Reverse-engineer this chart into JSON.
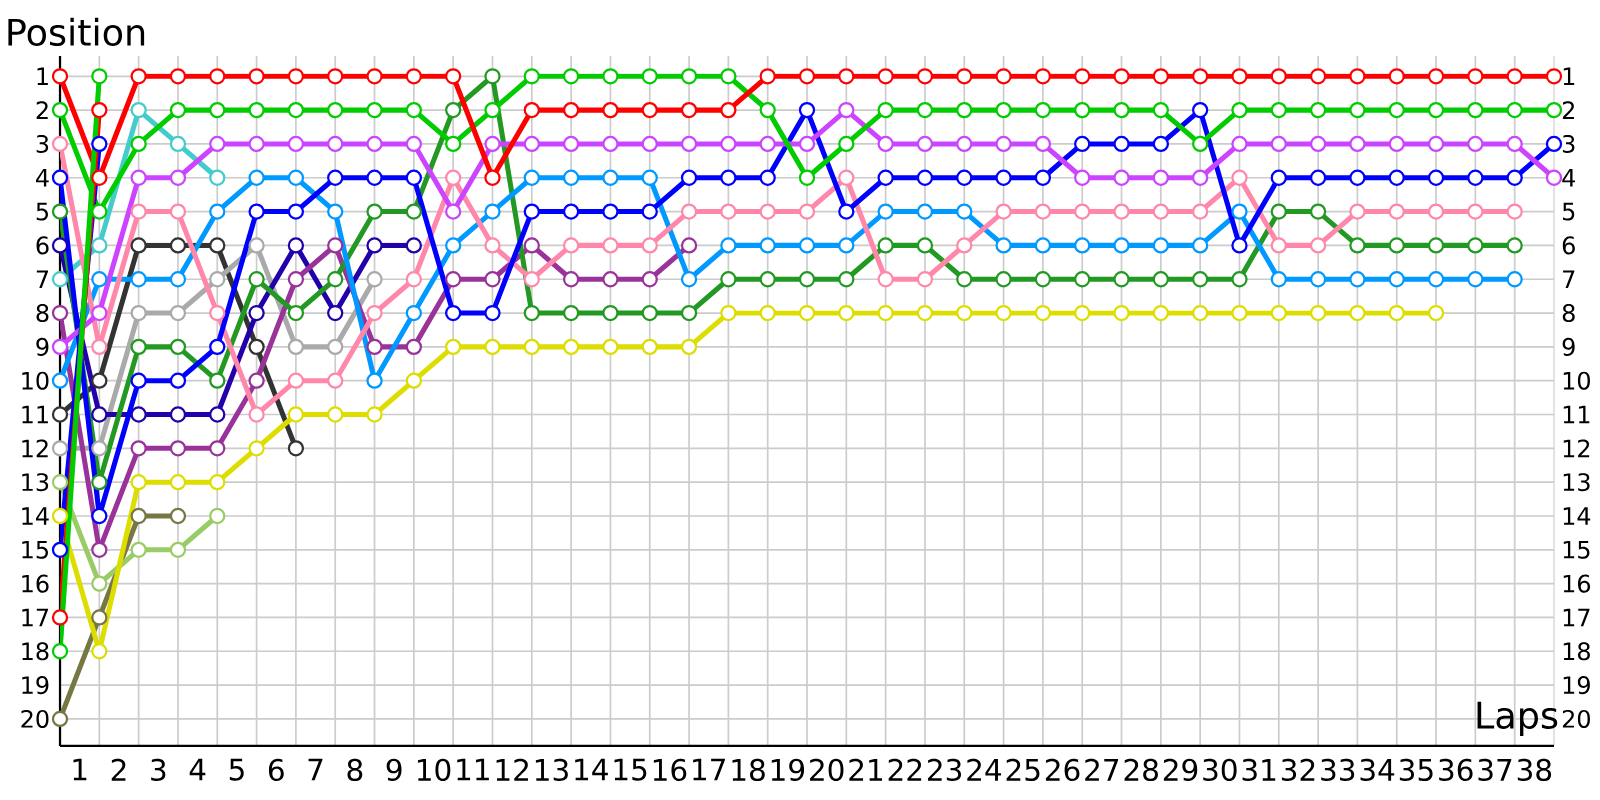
{
  "chart_data": {
    "type": "line",
    "xlabel": "Laps",
    "ylabel": "Position",
    "grid": true,
    "marker": "circle",
    "line_style": "solid",
    "x": [
      0,
      1,
      2,
      3,
      4,
      5,
      6,
      7,
      8,
      9,
      10,
      11,
      12,
      13,
      14,
      15,
      16,
      17,
      18,
      19,
      20,
      21,
      22,
      23,
      24,
      25,
      26,
      27,
      28,
      29,
      30,
      31,
      32,
      33,
      34,
      35,
      36,
      37,
      38
    ],
    "xlim": [
      0,
      38
    ],
    "ylim": [
      20.8,
      0.4
    ],
    "y2lim": [
      20.8,
      0.4
    ],
    "xticks": [
      {
        "value": 0.5,
        "label": "1"
      },
      {
        "value": 1.5,
        "label": "2"
      },
      {
        "value": 2.5,
        "label": "3"
      },
      {
        "value": 3.5,
        "label": "4"
      },
      {
        "value": 4.5,
        "label": "5"
      },
      {
        "value": 5.5,
        "label": "6"
      },
      {
        "value": 6.5,
        "label": "7"
      },
      {
        "value": 7.5,
        "label": "8"
      },
      {
        "value": 8.5,
        "label": "9"
      },
      {
        "value": 9.5,
        "label": "10"
      },
      {
        "value": 10.5,
        "label": "11"
      },
      {
        "value": 11.5,
        "label": "12"
      },
      {
        "value": 12.5,
        "label": "13"
      },
      {
        "value": 13.5,
        "label": "14"
      },
      {
        "value": 14.5,
        "label": "15"
      },
      {
        "value": 15.5,
        "label": "16"
      },
      {
        "value": 16.5,
        "label": "17"
      },
      {
        "value": 17.5,
        "label": "18"
      },
      {
        "value": 18.5,
        "label": "19"
      },
      {
        "value": 19.5,
        "label": "20"
      },
      {
        "value": 20.5,
        "label": "21"
      },
      {
        "value": 21.5,
        "label": "22"
      },
      {
        "value": 22.5,
        "label": "23"
      },
      {
        "value": 23.5,
        "label": "24"
      },
      {
        "value": 24.5,
        "label": "25"
      },
      {
        "value": 25.5,
        "label": "26"
      },
      {
        "value": 26.5,
        "label": "27"
      },
      {
        "value": 27.5,
        "label": "28"
      },
      {
        "value": 28.5,
        "label": "29"
      },
      {
        "value": 29.5,
        "label": "30"
      },
      {
        "value": 30.5,
        "label": "31"
      },
      {
        "value": 31.5,
        "label": "32"
      },
      {
        "value": 32.5,
        "label": "33"
      },
      {
        "value": 33.5,
        "label": "34"
      },
      {
        "value": 34.5,
        "label": "35"
      },
      {
        "value": 35.5,
        "label": "36"
      },
      {
        "value": 36.5,
        "label": "37"
      },
      {
        "value": 37.5,
        "label": "38"
      }
    ],
    "yticks": [
      1,
      2,
      3,
      4,
      5,
      6,
      7,
      8,
      9,
      10,
      11,
      12,
      13,
      14,
      15,
      16,
      17,
      18,
      19,
      20
    ],
    "y2ticks": [
      1,
      2,
      3,
      4,
      5,
      6,
      7,
      8,
      9,
      10,
      11,
      12,
      13,
      14,
      15,
      16,
      17,
      18,
      19,
      20
    ],
    "series": [
      {
        "color": "#777744",
        "values": [
          20,
          17,
          14,
          14,
          null,
          null,
          null,
          null,
          null,
          null,
          null,
          null,
          null,
          null,
          null,
          null,
          null,
          null,
          null,
          null,
          null,
          null,
          null,
          null,
          null,
          null,
          null,
          null,
          null,
          null,
          null,
          null,
          null,
          null,
          null,
          null,
          null,
          null,
          null
        ]
      },
      {
        "color": "#99cc66",
        "values": [
          13,
          16,
          15,
          15,
          14,
          null,
          null,
          null,
          null,
          null,
          null,
          null,
          null,
          null,
          null,
          null,
          null,
          null,
          null,
          null,
          null,
          null,
          null,
          null,
          null,
          null,
          null,
          null,
          null,
          null,
          null,
          null,
          null,
          null,
          null,
          null,
          null,
          null,
          null
        ]
      },
      {
        "color": "#44cccc",
        "values": [
          7,
          6,
          2,
          3,
          4,
          null,
          null,
          null,
          null,
          null,
          null,
          null,
          null,
          null,
          null,
          null,
          null,
          null,
          null,
          null,
          null,
          null,
          null,
          null,
          null,
          null,
          null,
          null,
          null,
          null,
          null,
          null,
          null,
          null,
          null,
          null,
          null,
          null,
          null
        ]
      },
      {
        "color": "#333333",
        "values": [
          11,
          10,
          6,
          6,
          6,
          9,
          12,
          null,
          null,
          null,
          null,
          null,
          null,
          null,
          null,
          null,
          null,
          null,
          null,
          null,
          null,
          null,
          null,
          null,
          null,
          null,
          null,
          null,
          null,
          null,
          null,
          null,
          null,
          null,
          null,
          null,
          null,
          null,
          null
        ]
      },
      {
        "color": "#aaaaaa",
        "values": [
          12,
          12,
          8,
          8,
          7,
          6,
          9,
          9,
          7,
          null,
          null,
          null,
          null,
          null,
          null,
          null,
          null,
          null,
          null,
          null,
          null,
          null,
          null,
          null,
          null,
          null,
          null,
          null,
          null,
          null,
          null,
          null,
          null,
          null,
          null,
          null,
          null,
          null,
          null
        ]
      },
      {
        "color": "#2200aa",
        "values": [
          6,
          11,
          11,
          11,
          11,
          8,
          6,
          8,
          6,
          6,
          null,
          null,
          null,
          null,
          null,
          null,
          null,
          null,
          null,
          null,
          null,
          null,
          null,
          null,
          null,
          null,
          null,
          null,
          null,
          null,
          null,
          null,
          null,
          null,
          null,
          null,
          null,
          null,
          null
        ]
      },
      {
        "color": "#993399",
        "values": [
          8,
          15,
          12,
          12,
          12,
          10,
          7,
          6,
          9,
          9,
          7,
          7,
          6,
          7,
          7,
          7,
          6,
          null,
          null,
          null,
          null,
          null,
          null,
          null,
          null,
          null,
          null,
          null,
          null,
          null,
          null,
          null,
          null,
          null,
          null,
          null,
          null,
          null,
          null
        ]
      },
      {
        "color": "#dddd00",
        "values": [
          14,
          18,
          13,
          13,
          13,
          12,
          11,
          11,
          11,
          10,
          9,
          9,
          9,
          9,
          9,
          9,
          9,
          8,
          8,
          8,
          8,
          8,
          8,
          8,
          8,
          8,
          8,
          8,
          8,
          8,
          8,
          8,
          8,
          8,
          8,
          8,
          null,
          null,
          null
        ]
      },
      {
        "color": "#229922",
        "values": [
          5,
          13,
          9,
          9,
          10,
          7,
          8,
          7,
          5,
          5,
          2,
          1,
          8,
          8,
          8,
          8,
          8,
          7,
          7,
          7,
          7,
          6,
          6,
          7,
          7,
          7,
          7,
          7,
          7,
          7,
          7,
          5,
          5,
          6,
          6,
          6,
          6,
          6,
          null
        ]
      },
      {
        "color": "#0099ff",
        "values": [
          10,
          7,
          7,
          7,
          5,
          4,
          4,
          5,
          10,
          8,
          6,
          5,
          4,
          4,
          4,
          4,
          7,
          6,
          6,
          6,
          6,
          5,
          5,
          5,
          6,
          6,
          6,
          6,
          6,
          6,
          5,
          7,
          7,
          7,
          7,
          7,
          7,
          7,
          null
        ]
      },
      {
        "color": "#ff88aa",
        "values": [
          3,
          9,
          5,
          5,
          8,
          11,
          10,
          10,
          8,
          7,
          4,
          6,
          7,
          6,
          6,
          6,
          5,
          5,
          5,
          5,
          4,
          7,
          7,
          6,
          5,
          5,
          5,
          5,
          5,
          5,
          4,
          6,
          6,
          5,
          5,
          5,
          5,
          5,
          null
        ]
      },
      {
        "color": "#0000ff",
        "values": [
          4,
          14,
          10,
          10,
          9,
          5,
          5,
          4,
          4,
          4,
          8,
          8,
          5,
          5,
          5,
          5,
          4,
          4,
          4,
          2,
          5,
          4,
          4,
          4,
          4,
          4,
          3,
          3,
          3,
          2,
          6,
          4,
          4,
          4,
          4,
          4,
          4,
          4,
          3
        ]
      },
      {
        "color": "#cc44ff",
        "values": [
          9,
          8,
          4,
          4,
          3,
          3,
          3,
          3,
          3,
          3,
          5,
          3,
          3,
          3,
          3,
          3,
          3,
          3,
          3,
          3,
          2,
          3,
          3,
          3,
          3,
          3,
          4,
          4,
          4,
          4,
          3,
          3,
          3,
          3,
          3,
          3,
          3,
          3,
          4
        ]
      },
      {
        "color": "#00cc00",
        "values": [
          2,
          5,
          3,
          2,
          2,
          2,
          2,
          2,
          2,
          2,
          3,
          2,
          1,
          1,
          1,
          1,
          1,
          1,
          2,
          4,
          3,
          2,
          2,
          2,
          2,
          2,
          2,
          2,
          2,
          3,
          2,
          2,
          2,
          2,
          2,
          2,
          2,
          2,
          2
        ]
      },
      {
        "color": "#ff0000",
        "values": [
          1,
          4,
          1,
          1,
          1,
          1,
          1,
          1,
          1,
          1,
          1,
          4,
          2,
          2,
          2,
          2,
          2,
          2,
          1,
          1,
          1,
          1,
          1,
          1,
          1,
          1,
          1,
          1,
          1,
          1,
          1,
          1,
          1,
          1,
          1,
          1,
          1,
          1,
          1
        ]
      },
      {
        "color": "#0000ff",
        "values": [
          15,
          3,
          null,
          null,
          null,
          null,
          null,
          null,
          null,
          null,
          null,
          null,
          null,
          null,
          null,
          null,
          null,
          null,
          null,
          null,
          null,
          null,
          null,
          null,
          null,
          null,
          null,
          null,
          null,
          null,
          null,
          null,
          null,
          null,
          null,
          null,
          null,
          null,
          null
        ]
      },
      {
        "color": "#ff0000",
        "values": [
          17,
          2,
          null,
          null,
          null,
          null,
          null,
          null,
          null,
          null,
          null,
          null,
          null,
          null,
          null,
          null,
          null,
          null,
          null,
          null,
          null,
          null,
          null,
          null,
          null,
          null,
          null,
          null,
          null,
          null,
          null,
          null,
          null,
          null,
          null,
          null,
          null,
          null,
          null
        ]
      },
      {
        "color": "#00cc00",
        "values": [
          18,
          1,
          null,
          null,
          null,
          null,
          null,
          null,
          null,
          null,
          null,
          null,
          null,
          null,
          null,
          null,
          null,
          null,
          null,
          null,
          null,
          null,
          null,
          null,
          null,
          null,
          null,
          null,
          null,
          null,
          null,
          null,
          null,
          null,
          null,
          null,
          null,
          null,
          null
        ]
      }
    ]
  }
}
